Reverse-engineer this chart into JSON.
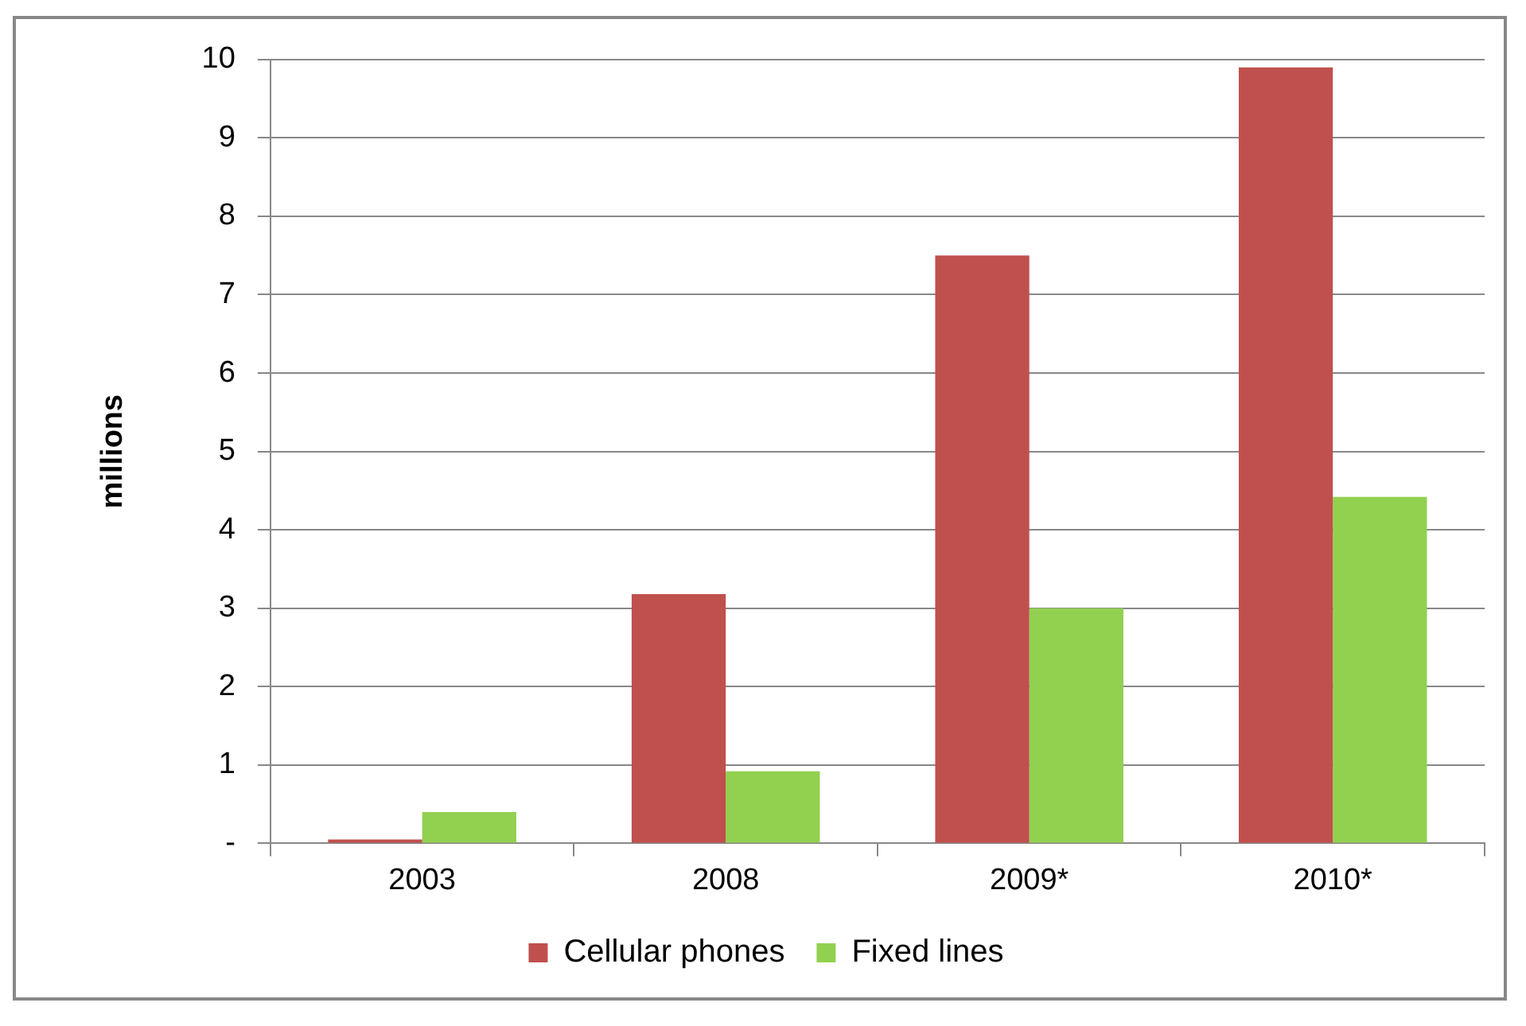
{
  "chart_data": {
    "type": "bar",
    "ylabel": "millions",
    "categories": [
      "2003",
      "2008",
      "2009*",
      "2010*"
    ],
    "series": [
      {
        "name": "Cellular phones",
        "color": "#c0504d",
        "values": [
          0.05,
          3.18,
          7.5,
          9.9
        ]
      },
      {
        "name": "Fixed lines",
        "color": "#92d050",
        "values": [
          0.4,
          0.92,
          3.0,
          4.42
        ]
      }
    ],
    "ylim": [
      0,
      10
    ],
    "yticks": [
      {
        "value": 0,
        "label": "-"
      },
      1,
      2,
      3,
      4,
      5,
      6,
      7,
      8,
      9,
      10
    ],
    "grid": "y",
    "legend": "bottom"
  }
}
